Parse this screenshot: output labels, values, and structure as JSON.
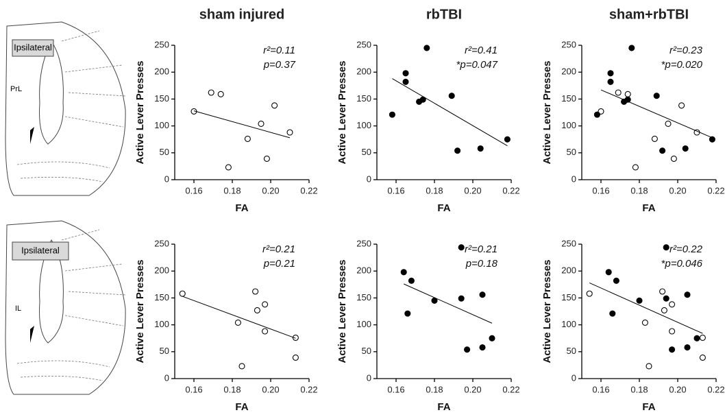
{
  "diagrams": [
    {
      "label": "Ipsilateral",
      "region": "PrL"
    },
    {
      "label": "Ipsilateral",
      "region": "IL"
    }
  ],
  "chart_data": [
    {
      "type": "scatter",
      "title": "sham injured",
      "xlabel": "FA",
      "ylabel": "Active Lever Presses",
      "xlim": [
        0.15,
        0.22
      ],
      "ylim": [
        0,
        250
      ],
      "xticks": [
        0.16,
        0.18,
        {
          "value": 0.2,
          "label": "0.20"
        },
        0.22
      ],
      "yticks": [
        0,
        50,
        100,
        150,
        200,
        250
      ],
      "annotations": [
        "r²=0.11",
        "p=0.37"
      ],
      "series": [
        {
          "marker": "open",
          "color": "#000000",
          "x": [
            0.16,
            0.169,
            0.174,
            0.178,
            0.188,
            0.195,
            0.198,
            0.202,
            0.21
          ],
          "values": [
            127,
            162,
            159,
            23,
            76,
            104,
            39,
            138,
            88
          ]
        }
      ],
      "fit": {
        "x": [
          0.16,
          0.21
        ],
        "values": [
          128,
          78
        ]
      }
    },
    {
      "type": "scatter",
      "title": "rbTBI",
      "xlabel": "FA",
      "ylabel": "Active Lever Presses",
      "xlim": [
        0.15,
        0.22
      ],
      "ylim": [
        0,
        250
      ],
      "xticks": [
        0.16,
        0.18,
        {
          "value": 0.2,
          "label": "0.20"
        },
        0.22
      ],
      "yticks": [
        0,
        50,
        100,
        150,
        200,
        250
      ],
      "annotations": [
        "r²=0.41",
        "*p=0.047"
      ],
      "series": [
        {
          "marker": "filled",
          "color": "#000000",
          "x": [
            0.158,
            0.165,
            0.165,
            0.172,
            0.174,
            0.176,
            0.189,
            0.192,
            0.204,
            0.218
          ],
          "values": [
            121,
            198,
            182,
            145,
            149,
            245,
            156,
            54,
            58,
            75
          ]
        }
      ],
      "fit": {
        "x": [
          0.158,
          0.218
        ],
        "values": [
          188,
          63
        ]
      }
    },
    {
      "type": "scatter",
      "title": "sham+rbTBI",
      "xlabel": "FA",
      "ylabel": "Active Lever Presses",
      "xlim": [
        0.15,
        0.22
      ],
      "ylim": [
        0,
        250
      ],
      "xticks": [
        0.16,
        0.18,
        {
          "value": 0.2,
          "label": "0.20"
        },
        0.22
      ],
      "yticks": [
        0,
        50,
        100,
        150,
        200,
        250
      ],
      "annotations": [
        "r²=0.23",
        "*p=0.020"
      ],
      "series": [
        {
          "marker": "open",
          "color": "#000000",
          "x": [
            0.16,
            0.169,
            0.174,
            0.178,
            0.188,
            0.195,
            0.198,
            0.202,
            0.21
          ],
          "values": [
            127,
            162,
            159,
            23,
            76,
            104,
            39,
            138,
            88
          ]
        },
        {
          "marker": "filled",
          "color": "#000000",
          "x": [
            0.158,
            0.165,
            0.165,
            0.172,
            0.174,
            0.176,
            0.189,
            0.192,
            0.204,
            0.218
          ],
          "values": [
            121,
            198,
            182,
            145,
            149,
            245,
            156,
            54,
            58,
            75
          ]
        }
      ],
      "fit": {
        "x": [
          0.16,
          0.218
        ],
        "values": [
          167,
          78
        ]
      }
    },
    {
      "type": "scatter",
      "xlabel": "FA",
      "ylabel": "Active Lever Presses",
      "xlim": [
        0.15,
        0.22
      ],
      "ylim": [
        0,
        250
      ],
      "xticks": [
        0.16,
        0.18,
        {
          "value": 0.2,
          "label": "0.20"
        },
        0.22
      ],
      "yticks": [
        0,
        50,
        100,
        150,
        200,
        250
      ],
      "annotations": [
        "r²=0.21",
        "p=0.21"
      ],
      "series": [
        {
          "marker": "open",
          "color": "#000000",
          "x": [
            0.154,
            0.183,
            0.185,
            0.192,
            0.193,
            0.197,
            0.197,
            0.213,
            0.213
          ],
          "values": [
            158,
            104,
            23,
            162,
            127,
            138,
            88,
            76,
            39
          ]
        }
      ],
      "fit": {
        "x": [
          0.154,
          0.213
        ],
        "values": [
          153,
          75
        ]
      }
    },
    {
      "type": "scatter",
      "xlabel": "FA",
      "ylabel": "Active Lever Presses",
      "xlim": [
        0.15,
        0.22
      ],
      "ylim": [
        0,
        250
      ],
      "xticks": [
        0.16,
        0.18,
        {
          "value": 0.2,
          "label": "0.20"
        },
        0.22
      ],
      "yticks": [
        0,
        50,
        100,
        150,
        200,
        250
      ],
      "annotations": [
        "r²=0.21",
        "p=0.18"
      ],
      "series": [
        {
          "marker": "filled",
          "color": "#000000",
          "x": [
            0.164,
            0.168,
            0.166,
            0.18,
            0.194,
            0.194,
            0.197,
            0.205,
            0.205,
            0.21
          ],
          "values": [
            198,
            182,
            121,
            145,
            244,
            149,
            54,
            156,
            58,
            75
          ]
        }
      ],
      "fit": {
        "x": [
          0.164,
          0.21
        ],
        "values": [
          176,
          103
        ]
      }
    },
    {
      "type": "scatter",
      "xlabel": "FA",
      "ylabel": "Active Lever Presses",
      "xlim": [
        0.15,
        0.22
      ],
      "ylim": [
        0,
        250
      ],
      "xticks": [
        0.16,
        0.18,
        {
          "value": 0.2,
          "label": "0.20"
        },
        0.22
      ],
      "yticks": [
        0,
        50,
        100,
        150,
        200,
        250
      ],
      "annotations": [
        "r²=0.22",
        "*p=0.046"
      ],
      "series": [
        {
          "marker": "open",
          "color": "#000000",
          "x": [
            0.154,
            0.183,
            0.185,
            0.192,
            0.193,
            0.197,
            0.197,
            0.213,
            0.213
          ],
          "values": [
            158,
            104,
            23,
            162,
            127,
            138,
            88,
            76,
            39
          ]
        },
        {
          "marker": "filled",
          "color": "#000000",
          "x": [
            0.164,
            0.168,
            0.166,
            0.18,
            0.194,
            0.194,
            0.197,
            0.205,
            0.205,
            0.21
          ],
          "values": [
            198,
            182,
            121,
            145,
            244,
            149,
            54,
            156,
            58,
            75
          ]
        }
      ],
      "fit": {
        "x": [
          0.154,
          0.213
        ],
        "values": [
          178,
          84
        ]
      }
    }
  ]
}
